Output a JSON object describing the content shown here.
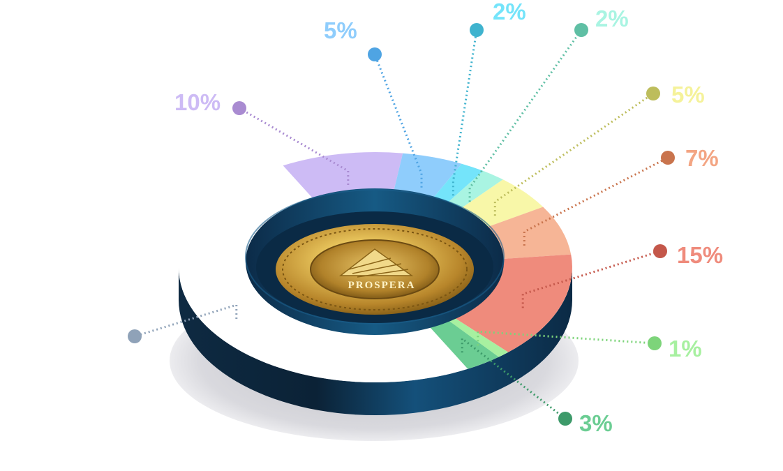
{
  "chart_data": {
    "type": "pie",
    "style": "3d-donut",
    "center_logo_text": "PROSPERA",
    "slices": [
      {
        "label": "10%",
        "value": 10,
        "color": "#cdbbf5",
        "dot": "#a98bd1",
        "text": "#cdbbf5"
      },
      {
        "label": "5%",
        "value": 5,
        "color": "#8fcdfc",
        "dot": "#4fa4e3",
        "text": "#8fcdfc"
      },
      {
        "label": "2%",
        "value": 2,
        "color": "#74e4fa",
        "dot": "#3fb3ce",
        "text": "#74e4fa"
      },
      {
        "label": "2%",
        "value": 2,
        "color": "#a9f4e2",
        "dot": "#5fbfa4",
        "text": "#a9f4e2"
      },
      {
        "label": "5%",
        "value": 5,
        "color": "#f8f7a8",
        "dot": "#bdbd5c",
        "text": "#f5f29a"
      },
      {
        "label": "7%",
        "value": 7,
        "color": "#f6b596",
        "dot": "#c9744d",
        "text": "#f3a583"
      },
      {
        "label": "15%",
        "value": 15,
        "color": "#ef8b7c",
        "dot": "#c4574a",
        "text": "#ef8b7c"
      },
      {
        "label": "1%",
        "value": 1,
        "color": "#a7f0a0",
        "dot": "#7dd47a",
        "text": "#a7f0a0"
      },
      {
        "label": "3%",
        "value": 3,
        "color": "#6bcd93",
        "dot": "#3d9a6a",
        "text": "#6bcd93"
      },
      {
        "label": "",
        "value": 50,
        "color": "#ffffff",
        "dot": "#8fa2b8",
        "text": "#8fa2b8"
      }
    ]
  }
}
